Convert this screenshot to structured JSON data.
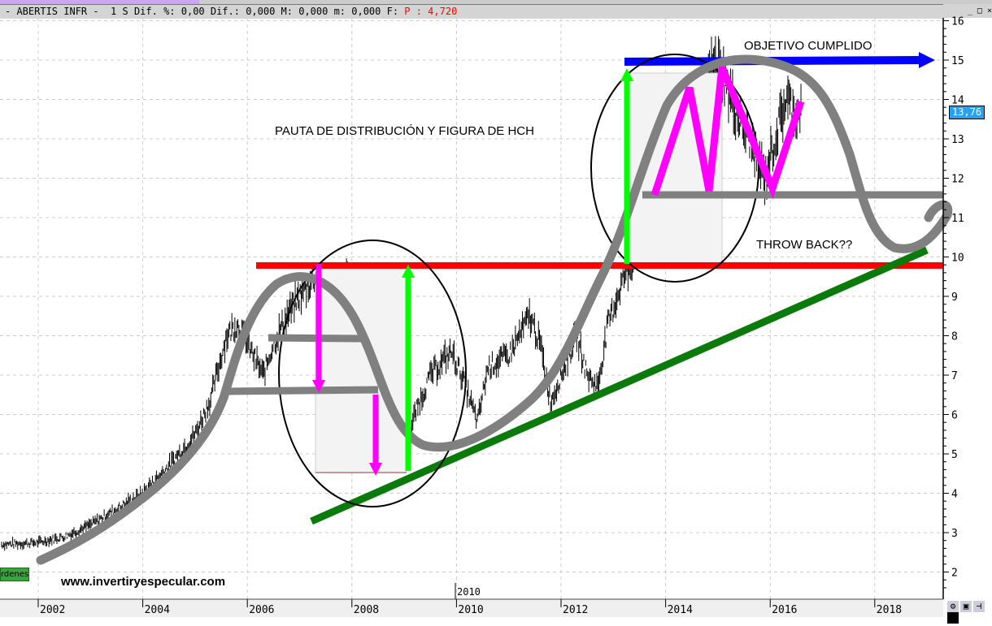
{
  "header": {
    "text": "- ABERTIS INFR -  1 S Dif. %: 0,00 Dif.: 0,000 M: 0,000 m: 0,000 F: ",
    "price_label": "P : 4,720"
  },
  "window_buttons": "_ □ ×",
  "ordenes_button": "rdenes",
  "watermark": "www.invertiryespecular.com",
  "last_price": "13,76",
  "annotations": {
    "pattern": "PAUTA DE DISTRIBUCIÓN Y  FIGURA DE HCH",
    "target": "OBJETIVO CUMPLIDO",
    "throwback": "THROW BACK??",
    "year_marker": "2010"
  },
  "colors": {
    "price": "#000000",
    "support": "#ff0000",
    "trend": "#0a7a0a",
    "target": "#0000ff",
    "hch": "#ff00ff",
    "up_arrow": "#00ff00",
    "curve": "#808080"
  },
  "chart_data": {
    "type": "line",
    "title": "ABERTIS INFR",
    "xlim": [
      2001.3,
      2019.0
    ],
    "ylim": [
      1.5,
      16
    ],
    "grid": true,
    "x_ticks": [
      "2002",
      "2004",
      "2006",
      "2008",
      "2010",
      "2012",
      "2014",
      "2016",
      "2018"
    ],
    "y_ticks": [
      "2",
      "3",
      "4",
      "5",
      "6",
      "7",
      "8",
      "9",
      "10",
      "11",
      "12",
      "13",
      "14",
      "15",
      "16"
    ],
    "series": [
      {
        "x": [
          2001.3,
          2002,
          2002.5,
          2003,
          2003.5,
          2004,
          2004.5,
          2005,
          2005.3,
          2005.6,
          2005.8,
          2006,
          2006.3,
          2006.5,
          2006.8,
          2007,
          2007.3,
          2007.6,
          2007.9,
          2008.1,
          2008.4,
          2008.6,
          2008.9,
          2009,
          2009.2,
          2009.5,
          2009.9,
          2010.1,
          2010.4,
          2010.6,
          2011,
          2011.4,
          2011.6,
          2011.8,
          2012,
          2012.3,
          2012.5,
          2012.7,
          2012.9,
          2013.2,
          2013.4,
          2013.6,
          2013.9,
          2014.2,
          2014.5,
          2014.8,
          2015,
          2015.3,
          2015.6,
          2015.9,
          2016.1,
          2016.3,
          2016.5,
          2016.6
        ],
        "values": [
          2.7,
          2.75,
          2.9,
          3.2,
          3.6,
          4.0,
          4.7,
          5.5,
          6.4,
          8.0,
          8.3,
          7.8,
          7.0,
          7.8,
          8.6,
          9.0,
          9.5,
          8.6,
          9.6,
          8.5,
          9.2,
          7.0,
          5.6,
          4.8,
          6.0,
          7.0,
          7.6,
          7.0,
          5.8,
          7.2,
          7.5,
          8.5,
          7.8,
          6.3,
          7.0,
          8.0,
          7.0,
          6.7,
          8.3,
          9.5,
          10.0,
          11.0,
          12.8,
          13.5,
          12.5,
          14.5,
          15.0,
          13.8,
          13.0,
          12.0,
          13.0,
          14.0,
          13.7,
          13.76
        ]
      }
    ]
  }
}
